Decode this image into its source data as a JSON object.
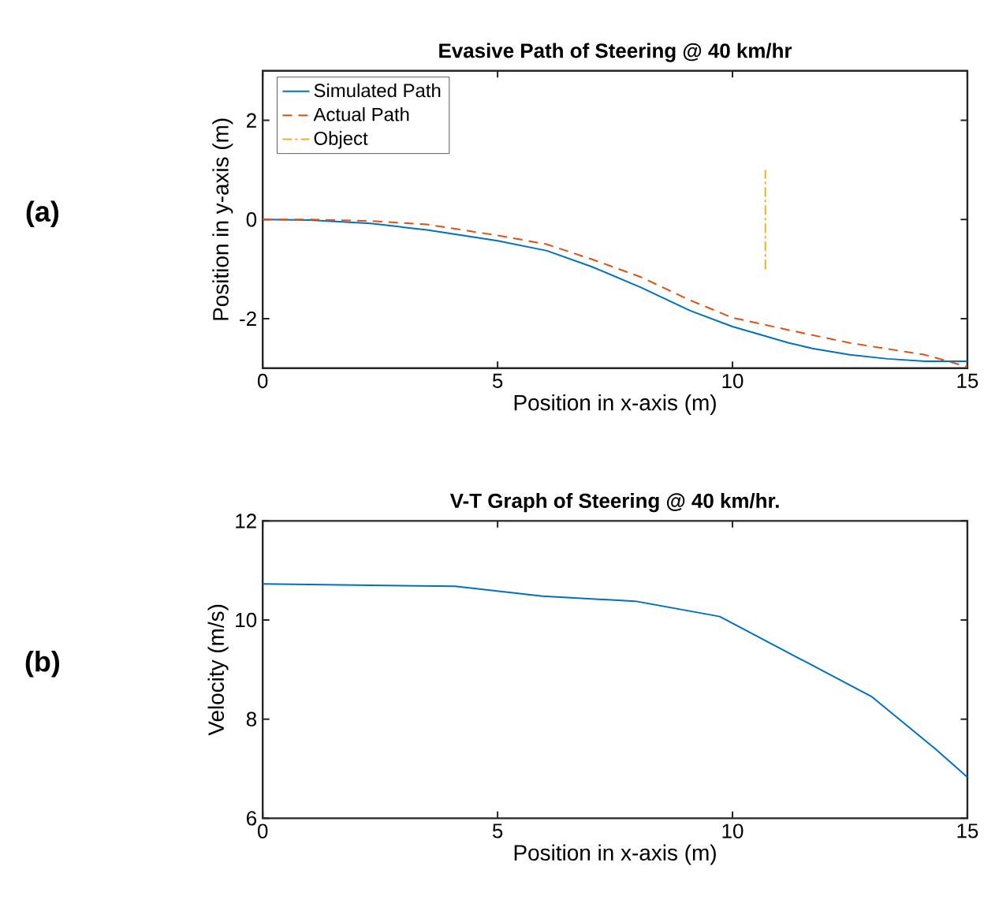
{
  "chart_data": [
    {
      "type": "line",
      "title": "Evasive Path of Steering @ 40 km/hr",
      "xlabel": "Position in x-axis (m)",
      "ylabel": "Position in y-axis (m)",
      "annotations": [
        "(a)"
      ],
      "xlim": [
        0,
        15
      ],
      "ylim": [
        -3,
        3
      ],
      "xticks": [
        0,
        5,
        10,
        15
      ],
      "yticks": [
        -2,
        0,
        2
      ],
      "legend": "top left",
      "grid": false,
      "series": [
        {
          "name": "Simulated Path",
          "color": "#0072bd",
          "line_style": "solid",
          "x": [
            0,
            1,
            2.3,
            3.5,
            5,
            6.05,
            7,
            8.05,
            9.1,
            10,
            11.2,
            11.7,
            12.5,
            13.3,
            14.1,
            15
          ],
          "values": [
            0,
            -0.01,
            -0.08,
            -0.21,
            -0.43,
            -0.63,
            -0.95,
            -1.37,
            -1.84,
            -2.16,
            -2.49,
            -2.6,
            -2.73,
            -2.81,
            -2.86,
            -2.86
          ]
        },
        {
          "name": "Actual Path",
          "color": "#d95319",
          "line_style": "dashed",
          "x": [
            0,
            1,
            2.3,
            3.5,
            5,
            6.05,
            7,
            8.05,
            9.1,
            10,
            11.2,
            12.5,
            14.1,
            15
          ],
          "values": [
            0,
            0,
            -0.03,
            -0.1,
            -0.32,
            -0.5,
            -0.8,
            -1.16,
            -1.63,
            -1.98,
            -2.23,
            -2.49,
            -2.73,
            -2.97
          ]
        },
        {
          "name": "Object",
          "color": "#edb120",
          "line_style": "dashdot",
          "x": [
            10.7,
            10.7
          ],
          "values": [
            -1,
            1
          ]
        }
      ]
    },
    {
      "type": "line",
      "title": "V-T Graph of Steering @ 40 km/hr.",
      "xlabel": "Position in x-axis (m)",
      "ylabel": "Velocity (m/s)",
      "annotations": [
        "(b)"
      ],
      "xlim": [
        0,
        15
      ],
      "ylim": [
        6,
        12
      ],
      "xticks": [
        0,
        5,
        10,
        15
      ],
      "yticks": [
        6,
        8,
        10,
        12
      ],
      "grid": false,
      "series": [
        {
          "color": "#0072bd",
          "x": [
            0,
            4.1,
            5.95,
            7.93,
            9.73,
            12.97,
            14.32,
            15
          ],
          "values": [
            10.73,
            10.68,
            10.48,
            10.38,
            10.07,
            8.45,
            7.4,
            6.83
          ]
        }
      ]
    }
  ]
}
